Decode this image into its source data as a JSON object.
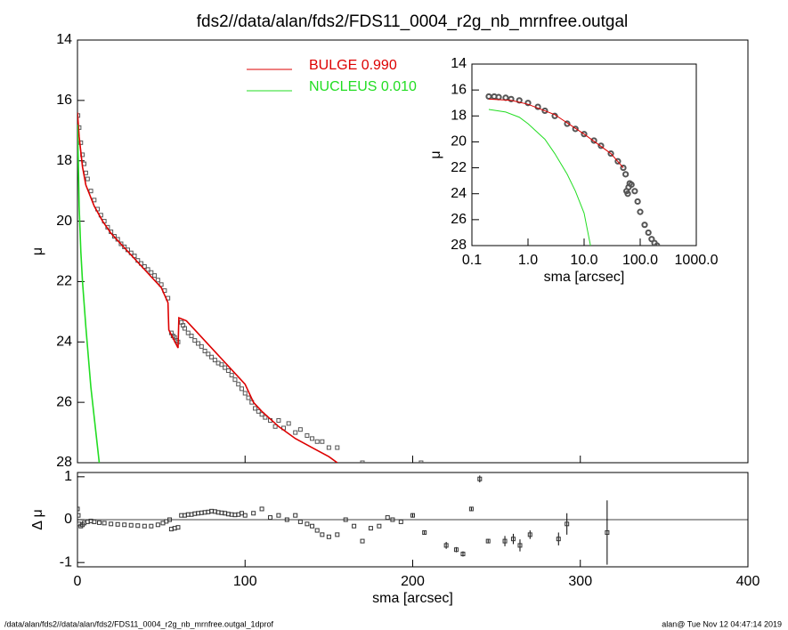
{
  "footer": {
    "left": "/data/alan/fds2//data/alan/fds2/FDS11_0004_r2g_nb_mrnfree.outgal_1dprof",
    "right": "alan@  Tue Nov 12 04:47:14 2019"
  },
  "chart_data": [
    {
      "type": "line",
      "title": "fds2//data/alan/fds2/FDS11_0004_r2g_nb_mrnfree.outgal",
      "ylabel": "μ",
      "xlim": [
        0,
        400
      ],
      "ylim": [
        14,
        28
      ],
      "y_inverted": true,
      "yticks": [
        14,
        16,
        18,
        20,
        22,
        24,
        26,
        28
      ],
      "series": [
        {
          "marker": "square",
          "color": "#555555",
          "x": [
            0.3,
            1,
            2,
            3,
            4,
            5,
            6,
            8,
            10,
            12,
            14,
            16,
            18,
            20,
            22,
            24,
            26,
            28,
            30,
            32,
            34,
            36,
            38,
            40,
            42,
            44,
            46,
            48,
            50,
            52,
            54,
            56,
            57,
            58,
            59,
            60,
            62,
            63,
            64,
            66,
            68,
            70,
            72,
            74,
            76,
            78,
            80,
            82,
            84,
            86,
            88,
            90,
            92,
            94,
            96,
            98,
            100,
            102,
            104,
            106,
            108,
            110,
            112,
            115,
            118,
            120,
            123,
            126,
            130,
            133,
            137,
            140,
            143,
            146,
            150,
            155,
            170,
            205
          ],
          "values": [
            16.5,
            16.9,
            17.4,
            17.8,
            18.1,
            18.4,
            18.6,
            19.0,
            19.3,
            19.6,
            19.8,
            20.0,
            20.2,
            20.35,
            20.5,
            20.6,
            20.75,
            20.85,
            20.95,
            21.05,
            21.15,
            21.3,
            21.4,
            21.5,
            21.6,
            21.7,
            21.8,
            21.95,
            22.1,
            22.3,
            22.55,
            23.7,
            23.8,
            23.85,
            23.95,
            24.0,
            23.35,
            23.45,
            23.55,
            23.7,
            23.8,
            23.95,
            24.05,
            24.15,
            24.3,
            24.4,
            24.5,
            24.6,
            24.7,
            24.75,
            24.85,
            24.95,
            25.1,
            25.25,
            25.4,
            25.55,
            25.7,
            25.85,
            26.0,
            26.2,
            26.3,
            26.4,
            26.5,
            26.6,
            26.8,
            26.6,
            26.85,
            26.7,
            27.0,
            26.9,
            27.1,
            27.2,
            27.3,
            27.3,
            27.5,
            27.5,
            28.0,
            28.0
          ]
        },
        {
          "name": "BULGE  0.990",
          "color": "#dd0000",
          "x": [
            0,
            1,
            3,
            5,
            10,
            15,
            20,
            30,
            40,
            50,
            54,
            54.5,
            60,
            60.5,
            65,
            70,
            80,
            90,
            100,
            105,
            110,
            120,
            130,
            140,
            150,
            155
          ],
          "values": [
            16.4,
            17.2,
            18.2,
            18.8,
            19.5,
            20.0,
            20.4,
            21.0,
            21.6,
            22.2,
            22.7,
            23.6,
            24.2,
            23.2,
            23.3,
            23.6,
            24.2,
            24.8,
            25.4,
            26.0,
            26.3,
            26.8,
            27.2,
            27.5,
            27.8,
            28.0
          ]
        },
        {
          "name": "NUCLEUS  0.010",
          "color": "#22dd22",
          "x": [
            0,
            0.5,
            1,
            2,
            3,
            5,
            8,
            10,
            13
          ],
          "values": [
            16.8,
            18.0,
            19.5,
            21.0,
            22.0,
            23.5,
            25.5,
            26.5,
            28.0
          ]
        }
      ]
    },
    {
      "type": "scatter",
      "xlabel": "sma [arcsec]",
      "ylabel": "Δ μ",
      "xlim": [
        0,
        400
      ],
      "ylim": [
        -1.1,
        1.1
      ],
      "xticks": [
        0,
        100,
        200,
        300,
        400
      ],
      "yticks": [
        -1,
        0,
        1
      ],
      "series": [
        {
          "marker": "square",
          "color": "#333333",
          "x": [
            0,
            0.5,
            1,
            2,
            3,
            4,
            6,
            8,
            10,
            13,
            16,
            20,
            24,
            28,
            32,
            36,
            40,
            44,
            48,
            51,
            53,
            55,
            56,
            58,
            60,
            62,
            64,
            66,
            68,
            70,
            72,
            74,
            76,
            78,
            80,
            82,
            84,
            86,
            88,
            90,
            92,
            94,
            96,
            98,
            100,
            105,
            110,
            115,
            120,
            125,
            130,
            133,
            137,
            140,
            143,
            146,
            150,
            155,
            160,
            165,
            170,
            175,
            180,
            185,
            188,
            193,
            200,
            207,
            220,
            226,
            230,
            235,
            240,
            245,
            255,
            260,
            264,
            270,
            287,
            292,
            316
          ],
          "values": [
            0.25,
            0.1,
            -0.1,
            -0.15,
            -0.12,
            -0.08,
            -0.05,
            -0.03,
            -0.05,
            -0.07,
            -0.08,
            -0.1,
            -0.11,
            -0.12,
            -0.13,
            -0.14,
            -0.15,
            -0.15,
            -0.12,
            -0.08,
            -0.04,
            0.0,
            -0.22,
            -0.2,
            -0.18,
            0.1,
            0.1,
            0.12,
            0.12,
            0.14,
            0.15,
            0.16,
            0.17,
            0.18,
            0.2,
            0.19,
            0.17,
            0.16,
            0.15,
            0.13,
            0.12,
            0.11,
            0.12,
            0.15,
            0.1,
            0.15,
            0.25,
            0.05,
            0.1,
            0.0,
            0.1,
            -0.05,
            -0.1,
            -0.15,
            -0.25,
            -0.35,
            -0.4,
            -0.35,
            0.0,
            -0.15,
            -0.5,
            -0.2,
            -0.15,
            0.05,
            0.0,
            -0.05,
            0.1,
            -0.3,
            -0.6,
            -0.7,
            -0.8,
            0.25,
            0.95,
            -0.5,
            -0.5,
            -0.45,
            -0.6,
            -0.35,
            -0.45,
            -0.1,
            -0.3
          ],
          "errors": [
            null,
            null,
            null,
            null,
            null,
            null,
            null,
            null,
            null,
            null,
            null,
            null,
            null,
            null,
            null,
            null,
            null,
            null,
            null,
            null,
            null,
            null,
            null,
            null,
            null,
            null,
            null,
            null,
            null,
            null,
            null,
            null,
            null,
            null,
            null,
            null,
            null,
            null,
            null,
            null,
            null,
            null,
            null,
            null,
            null,
            null,
            null,
            null,
            null,
            null,
            null,
            null,
            null,
            null,
            null,
            null,
            null,
            null,
            null,
            null,
            null,
            null,
            null,
            null,
            null,
            null,
            0.05,
            0.05,
            0.08,
            0.06,
            0.06,
            0.05,
            0.08,
            0.05,
            0.12,
            0.12,
            0.14,
            0.1,
            0.15,
            0.25,
            0.75
          ]
        }
      ]
    },
    {
      "type": "line",
      "xlabel": "sma [arcsec]",
      "ylabel": "μ",
      "xscale": "log",
      "xlim": [
        0.1,
        1000
      ],
      "ylim": [
        14,
        28
      ],
      "y_inverted": true,
      "xticks": [
        {
          "value": 0.1,
          "label": "0.1"
        },
        {
          "value": 1,
          "label": "1.0"
        },
        {
          "value": 10,
          "label": "10.0"
        },
        {
          "value": 100,
          "label": "100.0"
        },
        {
          "value": 1000,
          "label": "1000.0"
        }
      ],
      "yticks": [
        14,
        16,
        18,
        20,
        22,
        24,
        26,
        28
      ],
      "series": [
        {
          "marker": "circle",
          "color": "#555555",
          "x": [
            0.2,
            0.25,
            0.3,
            0.4,
            0.5,
            0.7,
            1,
            1.5,
            2,
            3,
            5,
            7,
            10,
            15,
            20,
            30,
            40,
            50,
            55,
            57,
            60,
            62,
            65,
            70,
            80,
            90,
            100,
            120,
            140,
            160,
            180,
            200
          ],
          "values": [
            16.5,
            16.5,
            16.55,
            16.6,
            16.7,
            16.8,
            17.0,
            17.3,
            17.6,
            18.0,
            18.6,
            19.0,
            19.4,
            19.9,
            20.3,
            20.9,
            21.5,
            22.0,
            22.5,
            23.8,
            24.0,
            23.5,
            23.2,
            23.3,
            23.8,
            24.6,
            25.4,
            26.4,
            27.0,
            27.5,
            27.8,
            28.0
          ]
        },
        {
          "color": "#dd0000",
          "x": [
            0.2,
            0.5,
            1,
            3,
            10,
            30,
            50
          ],
          "values": [
            16.7,
            16.8,
            17.1,
            17.9,
            19.4,
            20.9,
            22.0
          ]
        },
        {
          "color": "#22dd22",
          "x": [
            0.2,
            0.4,
            0.7,
            1,
            2,
            3,
            5,
            7,
            10,
            13
          ],
          "values": [
            17.5,
            17.7,
            18.1,
            18.6,
            19.8,
            20.9,
            22.5,
            23.8,
            25.5,
            28.0
          ]
        }
      ]
    }
  ]
}
